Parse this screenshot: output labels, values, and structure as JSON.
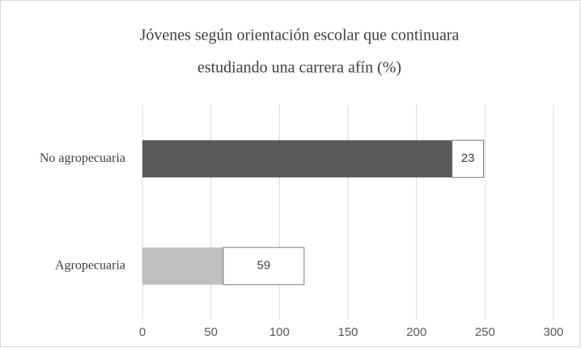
{
  "chart_data": {
    "type": "stacked-bar-horizontal",
    "title": [
      "Jóvenes según orientación escolar que continuara",
      "estudiando una carrera afín  (%)"
    ],
    "categories": [
      "No agropecuaria",
      "Agropecuaria"
    ],
    "series": [
      {
        "colors": [
          "#595959",
          "#bfbfbf"
        ],
        "values": [
          226,
          59
        ]
      },
      {
        "color": "#ffffff",
        "values": [
          23,
          59
        ],
        "show_labels": true
      }
    ],
    "xlim": [
      0,
      300
    ],
    "xticks": [
      0,
      50,
      100,
      150,
      200,
      250,
      300
    ],
    "grid": true
  }
}
